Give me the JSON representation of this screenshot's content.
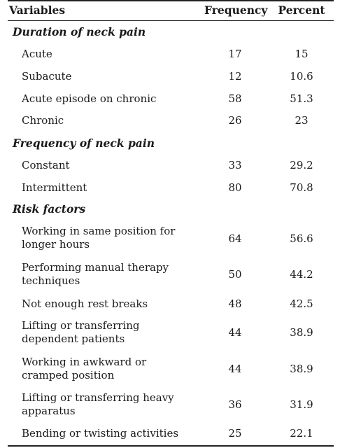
{
  "header": {
    "variables": "Variables",
    "frequency": "Frequency",
    "percent": "Percent"
  },
  "sections": [
    {
      "title": "Duration of neck pain",
      "rows": [
        {
          "label": "Acute",
          "frequency": "17",
          "percent": "15"
        },
        {
          "label": "Subacute",
          "frequency": "12",
          "percent": "10.6"
        },
        {
          "label": "Acute episode on chronic",
          "frequency": "58",
          "percent": "51.3"
        },
        {
          "label": "Chronic",
          "frequency": "26",
          "percent": "23"
        }
      ]
    },
    {
      "title": "Frequency of neck pain",
      "rows": [
        {
          "label": "Constant",
          "frequency": "33",
          "percent": "29.2"
        },
        {
          "label": "Intermittent",
          "frequency": "80",
          "percent": "70.8"
        }
      ]
    },
    {
      "title": "Risk factors",
      "rows": [
        {
          "label": "Working in same position for longer hours",
          "frequency": "64",
          "percent": "56.6"
        },
        {
          "label": "Performing manual therapy techniques",
          "frequency": "50",
          "percent": "44.2"
        },
        {
          "label": "Not enough rest breaks",
          "frequency": "48",
          "percent": "42.5"
        },
        {
          "label": "Lifting or transferring dependent patients",
          "frequency": "44",
          "percent": "38.9"
        },
        {
          "label": "Working in awkward or cramped position",
          "frequency": "44",
          "percent": "38.9"
        },
        {
          "label": "Lifting or transferring heavy apparatus",
          "frequency": "36",
          "percent": "31.9"
        },
        {
          "label": "Bending or twisting activities",
          "frequency": "25",
          "percent": "22.1"
        }
      ]
    }
  ]
}
